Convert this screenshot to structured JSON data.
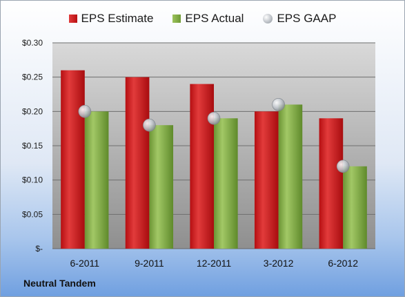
{
  "chart_data": {
    "type": "bar",
    "categories": [
      "6-2011",
      "9-2011",
      "12-2011",
      "3-2012",
      "6-2012"
    ],
    "series": [
      {
        "name": "EPS Estimate",
        "kind": "bar",
        "color": "#c8191c",
        "values": [
          0.26,
          0.25,
          0.24,
          0.2,
          0.19
        ]
      },
      {
        "name": "EPS Actual",
        "kind": "bar",
        "color": "#7ea641",
        "values": [
          0.2,
          0.18,
          0.19,
          0.21,
          0.12
        ]
      },
      {
        "name": "EPS GAAP",
        "kind": "marker",
        "color": "#b4b9bf",
        "values": [
          0.2,
          0.18,
          0.19,
          0.21,
          0.12
        ]
      }
    ],
    "ylim": [
      0,
      0.3
    ],
    "yticks": [
      0,
      0.05,
      0.1,
      0.15,
      0.2,
      0.25,
      0.3
    ],
    "ytick_labels": [
      "$-",
      "$0.05",
      "$0.10",
      "$0.15",
      "$0.20",
      "$0.25",
      "$0.30"
    ],
    "grid": true,
    "legend_position": "top"
  },
  "footer": {
    "company": "Neutral Tandem"
  }
}
